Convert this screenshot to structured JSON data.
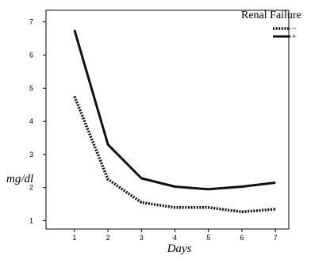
{
  "chart_data": {
    "type": "line",
    "title": "",
    "xlabel": "Days",
    "ylabel": "mg/dl",
    "x": [
      1,
      2,
      3,
      4,
      5,
      6,
      7
    ],
    "xlim": [
      0.15,
      7.4
    ],
    "ylim": [
      0.75,
      7.35
    ],
    "x_ticks": [
      1,
      2,
      3,
      4,
      5,
      6,
      7
    ],
    "y_ticks": [
      1,
      2,
      3,
      4,
      5,
      6,
      7
    ],
    "grid": false,
    "legend": {
      "title": "Renal Failure",
      "placement": "top-right"
    },
    "series": [
      {
        "name": "–",
        "style": "dotted",
        "color": "#111111",
        "values": [
          4.75,
          2.25,
          1.55,
          1.4,
          1.4,
          1.27,
          1.35
        ]
      },
      {
        "name": "+",
        "style": "solid",
        "color": "#111111",
        "values": [
          6.75,
          3.3,
          2.28,
          2.03,
          1.95,
          2.03,
          2.15
        ]
      }
    ]
  }
}
